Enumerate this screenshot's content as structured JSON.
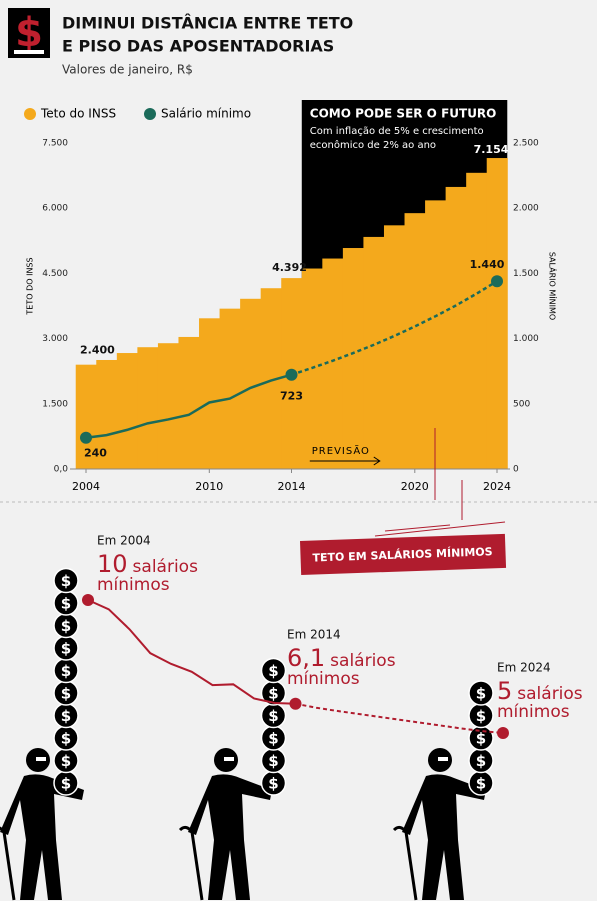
{
  "header": {
    "title": [
      "DIMINUI DISTÂNCIA ENTRE TETO",
      "E PISO DAS APOSENTADORIAS"
    ],
    "subtitle": "Valores de janeiro, R$"
  },
  "chart_data": [
    {
      "type": "bar",
      "x": [
        2004,
        2005,
        2006,
        2007,
        2008,
        2009,
        2010,
        2011,
        2012,
        2013,
        2014,
        2015,
        2016,
        2017,
        2018,
        2019,
        2020,
        2021,
        2022,
        2023,
        2024
      ],
      "xticks": [
        2004,
        2010,
        2014,
        2020,
        2024
      ],
      "ylabel": "TETO DO INSS",
      "y2label": "SALÁRIO MÍNIMO",
      "ylim": [
        0,
        7500
      ],
      "yticks": [
        {
          "value": 0,
          "label": "0,0"
        },
        {
          "value": 1500,
          "label": "1.500"
        },
        {
          "value": 3000,
          "label": "3.000"
        },
        {
          "value": 4500,
          "label": "4.500"
        },
        {
          "value": 6000,
          "label": "6.000"
        },
        {
          "value": 7500,
          "label": "7.500"
        }
      ],
      "y2lim": [
        0,
        2500
      ],
      "y2ticks": [
        0,
        500,
        {
          "value": 1000,
          "label": "1.000"
        },
        {
          "value": 1500,
          "label": "1.500"
        },
        {
          "value": 2000,
          "label": "2.000"
        },
        {
          "value": 2500,
          "label": "2.500"
        }
      ],
      "legend": "top-left",
      "forecast": {
        "from": 2014,
        "title": "COMO PODE SER O FUTURO",
        "text": [
          "Com inflação de 5% e crescimento",
          "econômico de 2% ao ano"
        ],
        "label": "PREVISÃO"
      },
      "series": [
        {
          "name": "Teto do INSS",
          "type": "bar",
          "color": "#f4a91c",
          "values": [
            2400,
            2508,
            2668,
            2802,
            2894,
            3038,
            3467,
            3689,
            3916,
            4159,
            4392,
            4612,
            4842,
            5084,
            5339,
            5606,
            5886,
            6180,
            6489,
            6814,
            7154
          ],
          "value_labels": [
            "2.400",
            null,
            null,
            null,
            null,
            null,
            null,
            null,
            null,
            null,
            "4.392",
            null,
            null,
            null,
            null,
            null,
            null,
            null,
            null,
            null,
            "7.154"
          ]
        },
        {
          "name": "Salário mínimo",
          "type": "line",
          "axis": "y2",
          "color": "#1b6b5a",
          "values": [
            240,
            260,
            300,
            350,
            380,
            415,
            510,
            540,
            622,
            678,
            723,
            775,
            830,
            889,
            952,
            1020,
            1093,
            1171,
            1254,
            1344,
            1440
          ],
          "value_labels": [
            "240",
            null,
            null,
            null,
            null,
            null,
            null,
            null,
            null,
            null,
            "723",
            null,
            null,
            null,
            null,
            null,
            null,
            null,
            null,
            null,
            "1.440"
          ]
        }
      ]
    },
    {
      "type": "line",
      "title": "TETO EM SALÁRIOS MÍNIMOS",
      "color": "#b01c2e",
      "x": [
        2004,
        2005,
        2006,
        2007,
        2008,
        2009,
        2010,
        2011,
        2012,
        2013,
        2014,
        2015,
        2016,
        2017,
        2018,
        2019,
        2020,
        2021,
        2022,
        2023,
        2024
      ],
      "values": [
        10,
        9.65,
        8.9,
        8.0,
        7.6,
        7.3,
        6.8,
        6.83,
        6.3,
        6.13,
        6.1,
        5.95,
        5.83,
        5.72,
        5.61,
        5.5,
        5.39,
        5.28,
        5.17,
        5.07,
        5
      ],
      "value_labels": [
        "10",
        null,
        null,
        null,
        null,
        null,
        null,
        null,
        null,
        null,
        "6,1",
        null,
        null,
        null,
        null,
        null,
        null,
        null,
        null,
        null,
        "5"
      ],
      "unit_label": [
        "salários",
        "mínimos"
      ],
      "annotations": [
        {
          "x": 2004,
          "title": "Em 2004"
        },
        {
          "x": 2014,
          "title": "Em 2014"
        },
        {
          "x": 2024,
          "title": "Em 2024"
        }
      ]
    }
  ]
}
